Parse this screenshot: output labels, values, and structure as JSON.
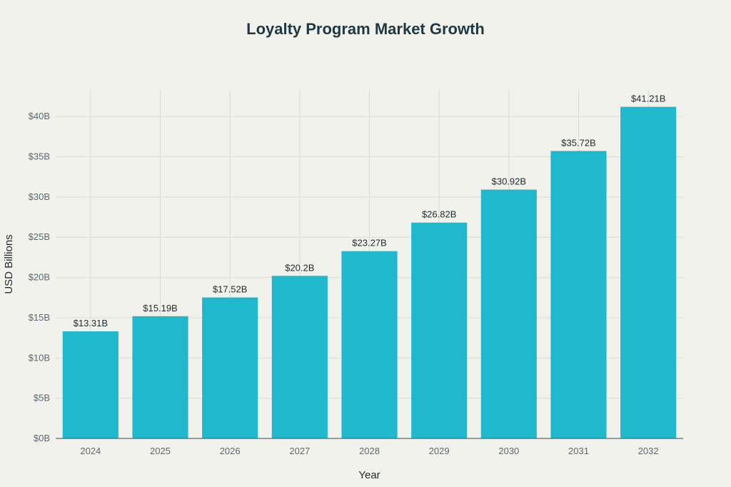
{
  "chart_data": {
    "type": "bar",
    "title": "Loyalty Program Market Growth",
    "xlabel": "Year",
    "ylabel": "USD Billions",
    "categories": [
      "2024",
      "2025",
      "2026",
      "2027",
      "2028",
      "2029",
      "2030",
      "2031",
      "2032"
    ],
    "values": [
      13.31,
      15.19,
      17.52,
      20.2,
      23.27,
      26.82,
      30.92,
      35.72,
      41.21
    ],
    "data_labels": [
      "$13.31B",
      "$15.19B",
      "$17.52B",
      "$20.2B",
      "$23.27B",
      "$26.82B",
      "$30.92B",
      "$35.72B",
      "$41.21B"
    ],
    "yticks": [
      0,
      5,
      10,
      15,
      20,
      25,
      30,
      35,
      40
    ],
    "ytick_labels": [
      "$0B",
      "$5B",
      "$10B",
      "$15B",
      "$20B",
      "$25B",
      "$30B",
      "$35B",
      "$40B"
    ],
    "ylim": [
      0,
      43.3
    ],
    "grid": true,
    "legend": "none",
    "bar_color": "#20b8cc",
    "grid_color": "#dcdcd6",
    "axis_color": "#5b6870"
  }
}
